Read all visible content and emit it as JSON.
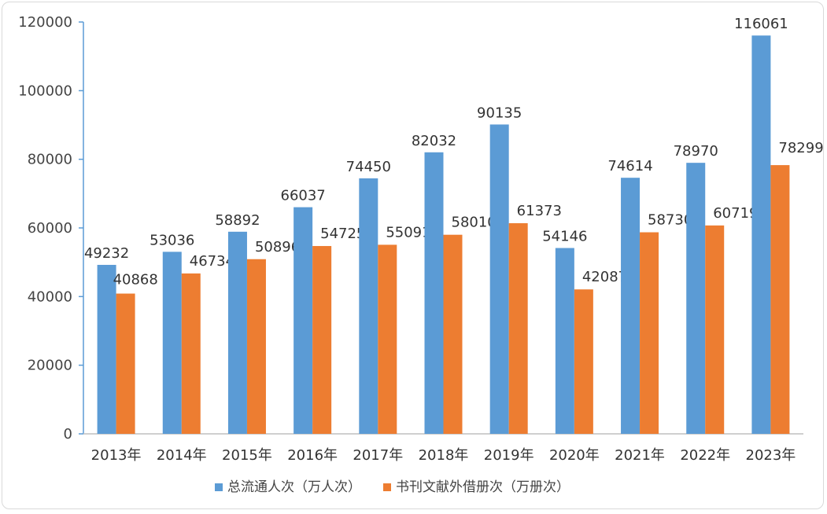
{
  "chart_data": {
    "type": "bar",
    "title": "",
    "xlabel": "",
    "ylabel": "",
    "categories": [
      "2013年",
      "2014年",
      "2015年",
      "2016年",
      "2017年",
      "2018年",
      "2019年",
      "2020年",
      "2021年",
      "2022年",
      "2023年"
    ],
    "ylim": [
      0,
      120000
    ],
    "yticks": [
      0,
      20000,
      40000,
      60000,
      80000,
      100000,
      120000
    ],
    "grid": false,
    "legend": "bottom",
    "series": [
      {
        "name": "总流通人次（万人次）",
        "color": "#5b9bd5",
        "values": [
          49232,
          53036,
          58892,
          66037,
          74450,
          82032,
          90135,
          54146,
          74614,
          78970,
          116061
        ]
      },
      {
        "name": "书刊文献外借册次（万册次）",
        "color": "#ed7d31",
        "values": [
          40868,
          46734,
          50896,
          54725,
          55091,
          58010,
          61373,
          42087,
          58730,
          60719,
          78299
        ]
      }
    ]
  }
}
